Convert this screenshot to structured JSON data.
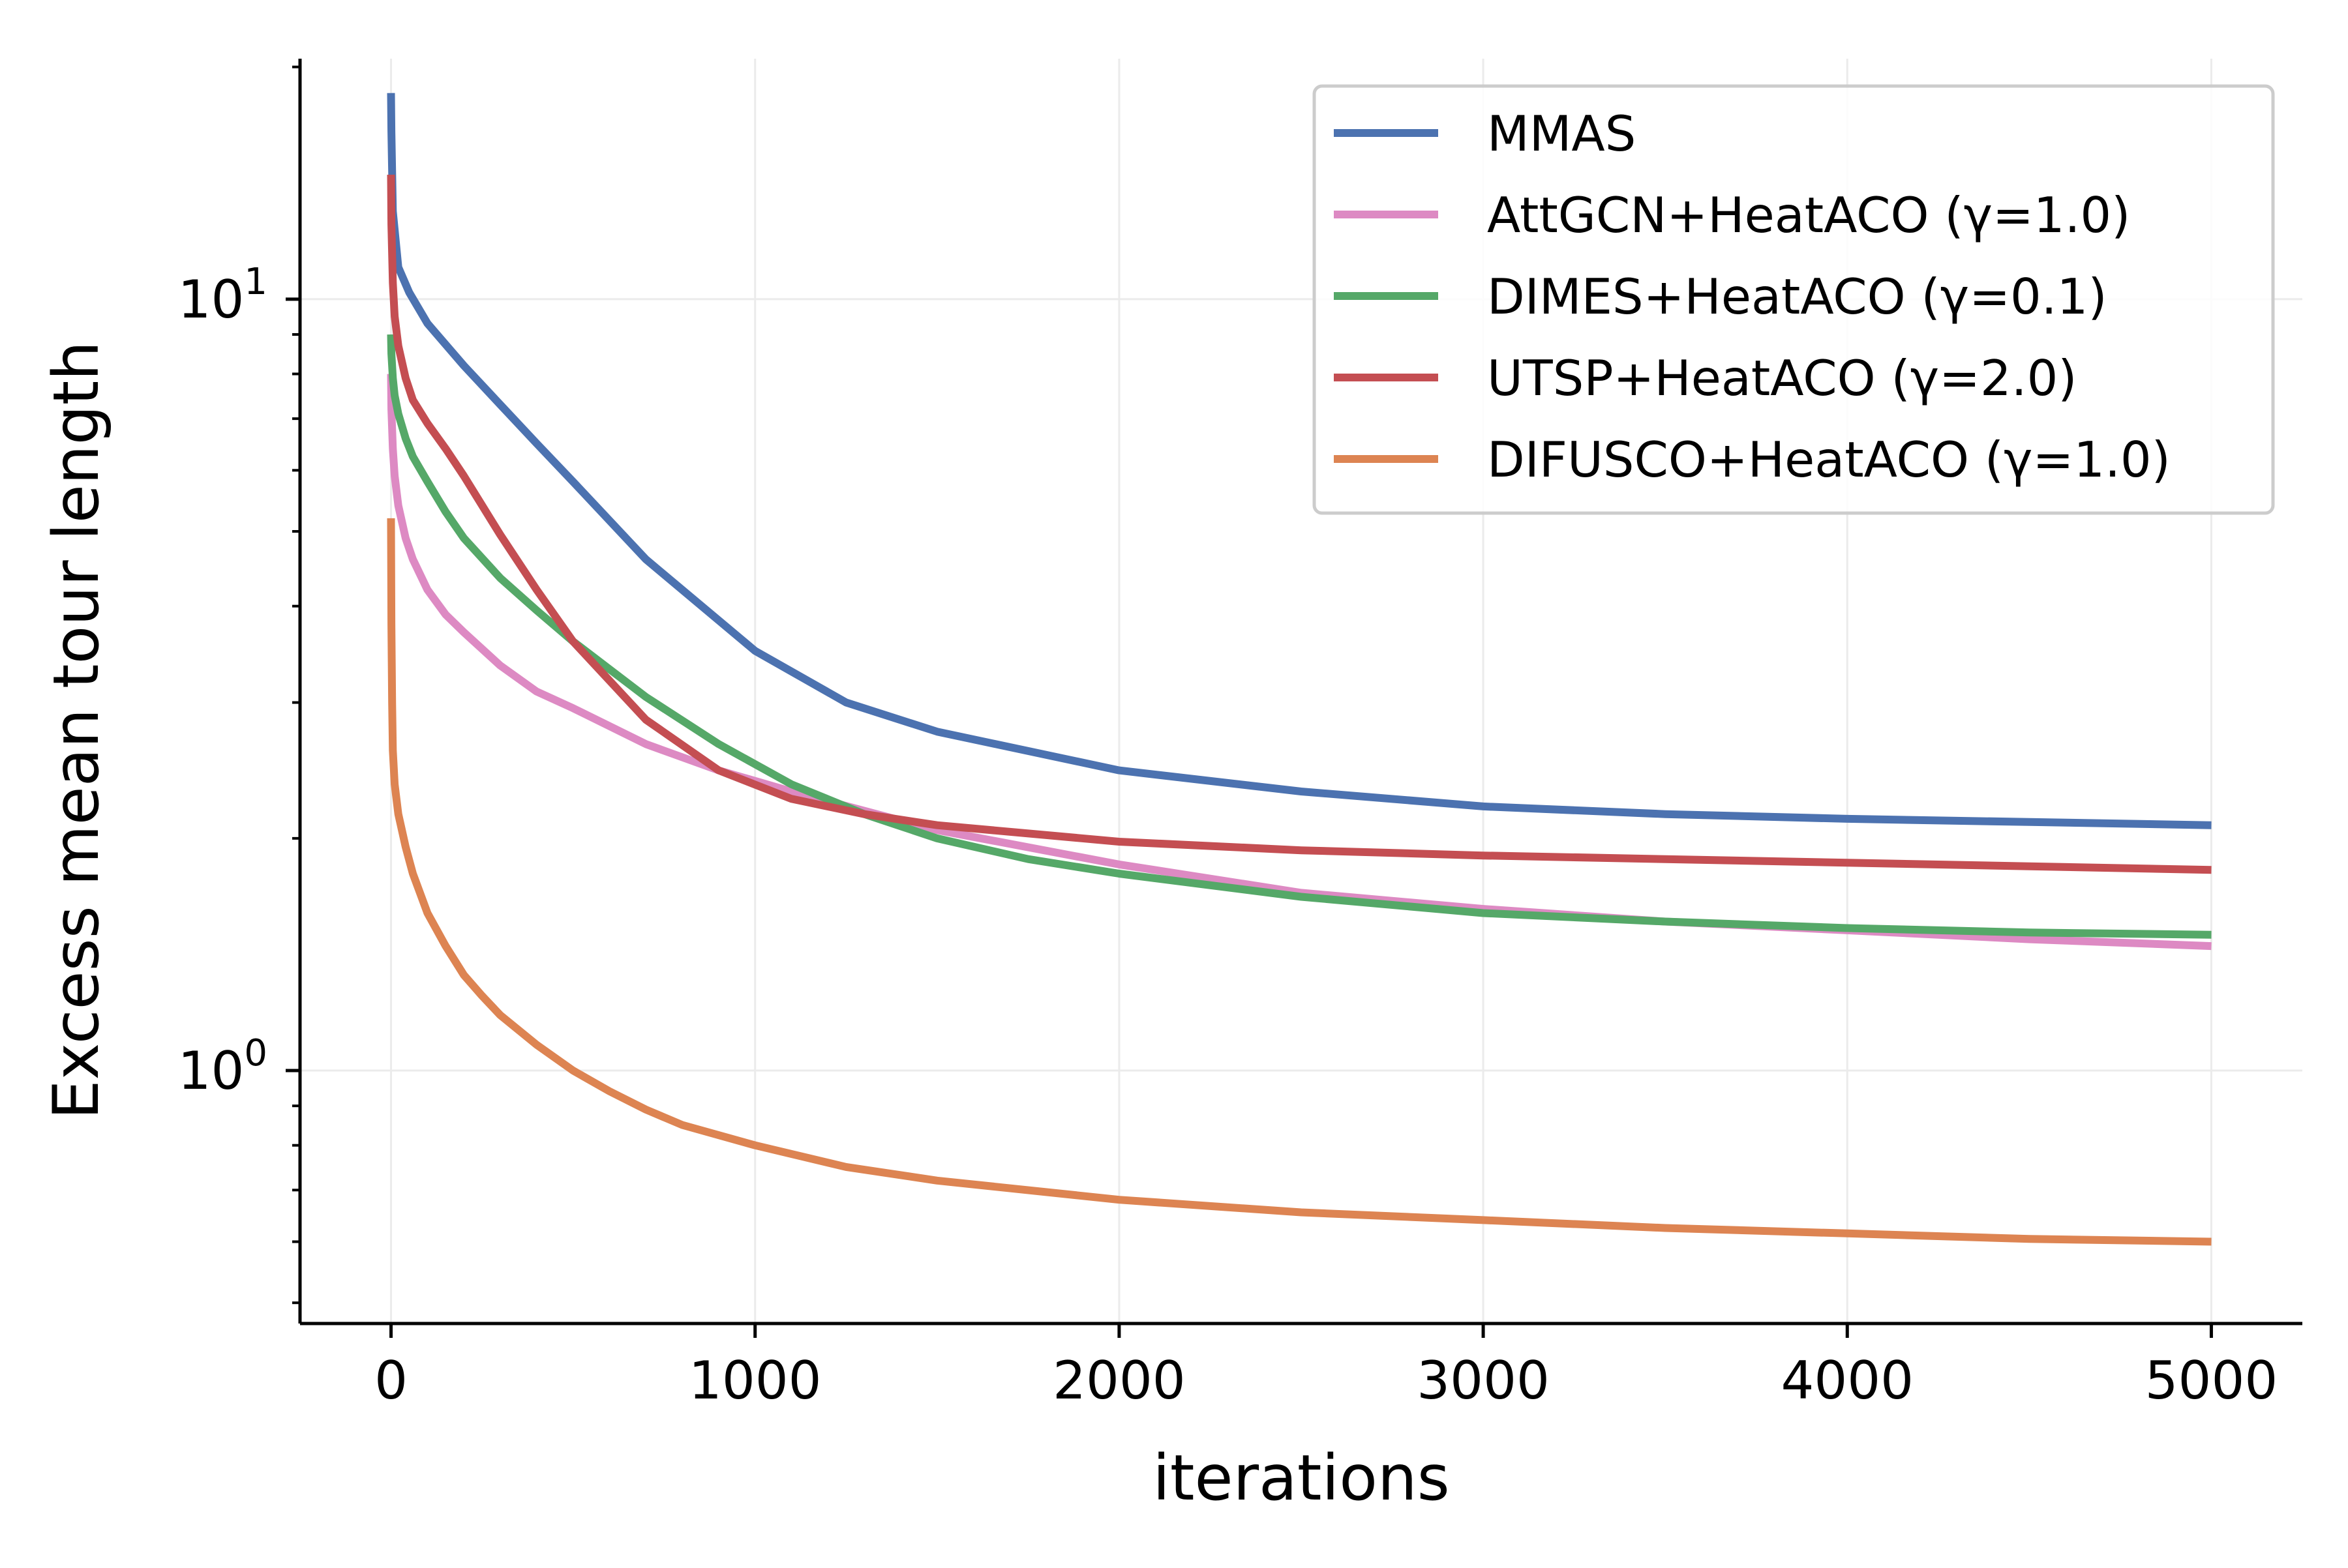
{
  "chart_data": {
    "type": "line",
    "title": "",
    "xlabel": "iterations",
    "ylabel": "Excess mean tour length",
    "yscale": "log",
    "xlim": [
      -250,
      5250
    ],
    "ylim": [
      0.47,
      20.5
    ],
    "x_ticks": [
      0,
      1000,
      2000,
      3000,
      4000,
      5000
    ],
    "x_tick_labels": [
      "0",
      "1000",
      "2000",
      "3000",
      "4000",
      "5000"
    ],
    "y_major_ticks": [
      {
        "value": 1,
        "base": "10",
        "exp": "0"
      },
      {
        "value": 10,
        "base": "10",
        "exp": "1"
      }
    ],
    "y_minor_ticks": [
      0.5,
      0.6,
      0.7,
      0.8,
      0.9,
      2,
      3,
      4,
      5,
      6,
      7,
      8,
      9,
      20
    ],
    "grid": true,
    "legend_position": "top-right",
    "series": [
      {
        "name": "MMAS",
        "color": "#4c72b0",
        "x": [
          0,
          1,
          5,
          20,
          50,
          100,
          200,
          300,
          400,
          500,
          700,
          1000,
          1250,
          1500,
          2000,
          2500,
          3000,
          3500,
          4000,
          4500,
          5000
        ],
        "y": [
          18.5,
          16.5,
          13.0,
          11.0,
          10.2,
          9.3,
          8.2,
          7.3,
          6.5,
          5.8,
          4.6,
          3.5,
          3.0,
          2.75,
          2.45,
          2.3,
          2.2,
          2.15,
          2.12,
          2.1,
          2.08
        ]
      },
      {
        "name": "AttGCN+HeatACO (γ=1.0)",
        "color": "#dd8ac3",
        "x": [
          0,
          1,
          5,
          10,
          20,
          40,
          60,
          100,
          150,
          200,
          300,
          400,
          500,
          700,
          900,
          1100,
          1500,
          2000,
          2500,
          3000,
          3500,
          4000,
          4500,
          5000
        ],
        "y": [
          8.0,
          7.2,
          6.4,
          5.9,
          5.4,
          4.9,
          4.6,
          4.2,
          3.9,
          3.7,
          3.35,
          3.1,
          2.95,
          2.65,
          2.45,
          2.3,
          2.05,
          1.85,
          1.7,
          1.62,
          1.56,
          1.52,
          1.48,
          1.45
        ]
      },
      {
        "name": "DIMES+HeatACO (γ=0.1)",
        "color": "#55a868",
        "x": [
          0,
          1,
          5,
          10,
          20,
          40,
          60,
          100,
          150,
          200,
          300,
          400,
          500,
          700,
          900,
          1100,
          1300,
          1500,
          1750,
          2000,
          2500,
          3000,
          3500,
          4000,
          4500,
          5000
        ],
        "y": [
          9.0,
          8.5,
          7.9,
          7.5,
          7.1,
          6.6,
          6.25,
          5.8,
          5.3,
          4.9,
          4.35,
          3.95,
          3.6,
          3.05,
          2.65,
          2.35,
          2.15,
          2.0,
          1.88,
          1.8,
          1.68,
          1.6,
          1.56,
          1.53,
          1.51,
          1.5
        ]
      },
      {
        "name": "UTSP+HeatACO (γ=2.0)",
        "color": "#c44e52",
        "x": [
          0,
          1,
          5,
          10,
          20,
          40,
          60,
          100,
          150,
          200,
          300,
          400,
          500,
          700,
          900,
          1100,
          1300,
          1500,
          2000,
          2500,
          3000,
          3500,
          4000,
          4500,
          5000
        ],
        "y": [
          14.5,
          12.5,
          10.5,
          9.5,
          8.7,
          7.9,
          7.4,
          6.9,
          6.4,
          5.9,
          4.95,
          4.2,
          3.6,
          2.85,
          2.45,
          2.25,
          2.15,
          2.08,
          1.98,
          1.93,
          1.9,
          1.88,
          1.86,
          1.84,
          1.82
        ]
      },
      {
        "name": "DIFUSCO+HeatACO (γ=1.0)",
        "color": "#dd8452",
        "x": [
          0,
          1,
          3,
          5,
          10,
          20,
          40,
          60,
          100,
          150,
          200,
          250,
          300,
          400,
          500,
          600,
          700,
          800,
          1000,
          1250,
          1500,
          2000,
          2500,
          3000,
          3500,
          4000,
          4500,
          5000
        ],
        "y": [
          5.2,
          3.8,
          3.0,
          2.6,
          2.35,
          2.15,
          1.95,
          1.8,
          1.6,
          1.45,
          1.33,
          1.25,
          1.18,
          1.08,
          1.0,
          0.94,
          0.89,
          0.85,
          0.8,
          0.75,
          0.72,
          0.68,
          0.655,
          0.64,
          0.625,
          0.615,
          0.605,
          0.6
        ]
      }
    ]
  }
}
